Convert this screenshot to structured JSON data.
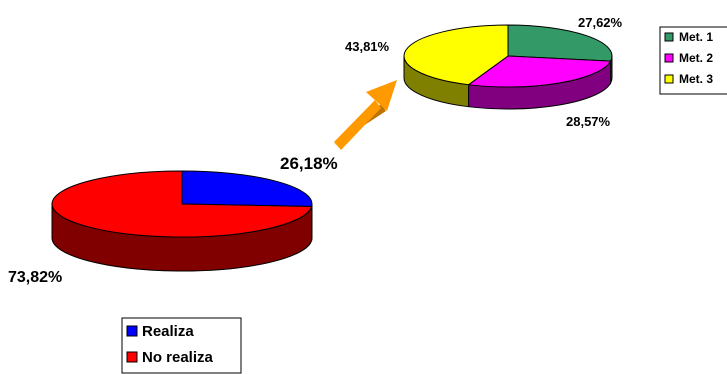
{
  "colors": {
    "realiza": "#0000FF",
    "no_realiza": "#FF0000",
    "met1": "#339966",
    "met2": "#FF00FF",
    "met3": "#FFFF00",
    "arrow": "#FF9900",
    "outline": "#000000"
  },
  "chart_data": [
    {
      "type": "pie",
      "style": "3d",
      "categories": [
        "Realiza",
        "No realiza"
      ],
      "values": [
        26.18,
        73.82
      ],
      "data_labels": [
        "26,18%",
        "73,82%"
      ],
      "legend": {
        "placement": "bottom",
        "entries": [
          "Realiza",
          "No realiza"
        ]
      }
    },
    {
      "type": "pie",
      "style": "3d",
      "categories": [
        "Met. 1",
        "Met. 2",
        "Met. 3"
      ],
      "values": [
        27.62,
        28.57,
        43.81
      ],
      "data_labels": [
        "27,62%",
        "28,57%",
        "43,81%"
      ],
      "legend": {
        "placement": "right",
        "entries": [
          "Met. 1",
          "Met. 2",
          "Met. 3"
        ]
      }
    }
  ]
}
